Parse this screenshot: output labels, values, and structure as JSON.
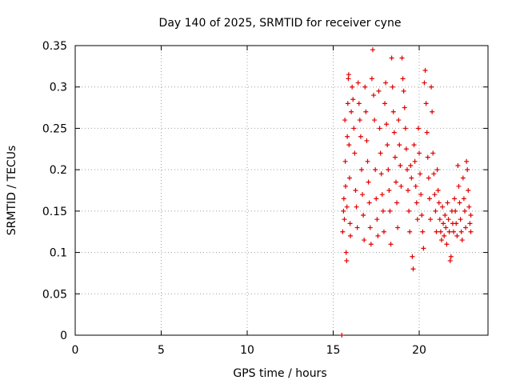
{
  "chart_data": {
    "type": "scatter",
    "title": "Day 140 of 2025, SRMTID for receiver cyne",
    "xlabel": "GPS time / hours",
    "ylabel": "SRMTID / TECUs",
    "xlim": [
      0,
      24
    ],
    "ylim": [
      0,
      0.35
    ],
    "xticks": [
      0,
      5,
      10,
      15,
      20
    ],
    "xtick_labels": [
      "0",
      "5",
      "10",
      "15",
      "20"
    ],
    "yticks": [
      0,
      0.05,
      0.1,
      0.15,
      0.2,
      0.25,
      0.3,
      0.35
    ],
    "ytick_labels": [
      "0",
      "0.05",
      "0.1",
      "0.15",
      "0.2",
      "0.25",
      "0.3",
      "0.35"
    ],
    "grid": true,
    "marker": "plus",
    "color": "#e00000",
    "series": [
      {
        "name": "SRMTID",
        "points": [
          [
            15.5,
            0.0
          ],
          [
            15.55,
            0.125
          ],
          [
            15.6,
            0.15
          ],
          [
            15.62,
            0.165
          ],
          [
            15.65,
            0.14
          ],
          [
            15.68,
            0.26
          ],
          [
            15.7,
            0.21
          ],
          [
            15.72,
            0.18
          ],
          [
            15.75,
            0.1
          ],
          [
            15.78,
            0.09
          ],
          [
            15.8,
            0.155
          ],
          [
            15.82,
            0.24
          ],
          [
            15.85,
            0.28
          ],
          [
            15.88,
            0.31
          ],
          [
            15.9,
            0.315
          ],
          [
            15.92,
            0.23
          ],
          [
            15.95,
            0.19
          ],
          [
            15.98,
            0.135
          ],
          [
            16.0,
            0.12
          ],
          [
            16.05,
            0.27
          ],
          [
            16.1,
            0.3
          ],
          [
            16.15,
            0.285
          ],
          [
            16.2,
            0.25
          ],
          [
            16.25,
            0.22
          ],
          [
            16.3,
            0.175
          ],
          [
            16.35,
            0.155
          ],
          [
            16.4,
            0.13
          ],
          [
            16.45,
            0.305
          ],
          [
            16.5,
            0.28
          ],
          [
            16.55,
            0.26
          ],
          [
            16.6,
            0.24
          ],
          [
            16.65,
            0.2
          ],
          [
            16.7,
            0.17
          ],
          [
            16.75,
            0.145
          ],
          [
            16.8,
            0.115
          ],
          [
            16.85,
            0.3
          ],
          [
            16.9,
            0.27
          ],
          [
            16.95,
            0.235
          ],
          [
            17.0,
            0.21
          ],
          [
            17.05,
            0.185
          ],
          [
            17.1,
            0.16
          ],
          [
            17.15,
            0.13
          ],
          [
            17.2,
            0.11
          ],
          [
            17.25,
            0.31
          ],
          [
            17.3,
            0.345
          ],
          [
            17.35,
            0.29
          ],
          [
            17.4,
            0.26
          ],
          [
            17.45,
            0.2
          ],
          [
            17.5,
            0.165
          ],
          [
            17.55,
            0.14
          ],
          [
            17.6,
            0.12
          ],
          [
            17.65,
            0.295
          ],
          [
            17.7,
            0.25
          ],
          [
            17.75,
            0.22
          ],
          [
            17.8,
            0.195
          ],
          [
            17.85,
            0.17
          ],
          [
            17.9,
            0.15
          ],
          [
            17.95,
            0.125
          ],
          [
            18.0,
            0.28
          ],
          [
            18.05,
            0.305
          ],
          [
            18.1,
            0.255
          ],
          [
            18.15,
            0.23
          ],
          [
            18.2,
            0.2
          ],
          [
            18.25,
            0.175
          ],
          [
            18.3,
            0.15
          ],
          [
            18.35,
            0.11
          ],
          [
            18.4,
            0.335
          ],
          [
            18.45,
            0.3
          ],
          [
            18.5,
            0.27
          ],
          [
            18.55,
            0.245
          ],
          [
            18.6,
            0.215
          ],
          [
            18.65,
            0.185
          ],
          [
            18.7,
            0.16
          ],
          [
            18.75,
            0.13
          ],
          [
            18.8,
            0.26
          ],
          [
            18.85,
            0.23
          ],
          [
            18.9,
            0.205
          ],
          [
            18.95,
            0.18
          ],
          [
            19.0,
            0.335
          ],
          [
            19.05,
            0.31
          ],
          [
            19.1,
            0.295
          ],
          [
            19.15,
            0.275
          ],
          [
            19.2,
            0.25
          ],
          [
            19.25,
            0.225
          ],
          [
            19.3,
            0.2
          ],
          [
            19.35,
            0.175
          ],
          [
            19.4,
            0.15
          ],
          [
            19.45,
            0.125
          ],
          [
            19.5,
            0.205
          ],
          [
            19.55,
            0.19
          ],
          [
            19.6,
            0.095
          ],
          [
            19.65,
            0.08
          ],
          [
            19.7,
            0.23
          ],
          [
            19.75,
            0.21
          ],
          [
            19.8,
            0.18
          ],
          [
            19.85,
            0.16
          ],
          [
            19.9,
            0.14
          ],
          [
            19.95,
            0.25
          ],
          [
            20.0,
            0.22
          ],
          [
            20.05,
            0.195
          ],
          [
            20.1,
            0.17
          ],
          [
            20.15,
            0.145
          ],
          [
            20.2,
            0.125
          ],
          [
            20.25,
            0.105
          ],
          [
            20.3,
            0.305
          ],
          [
            20.35,
            0.32
          ],
          [
            20.4,
            0.28
          ],
          [
            20.45,
            0.245
          ],
          [
            20.5,
            0.215
          ],
          [
            20.55,
            0.19
          ],
          [
            20.6,
            0.165
          ],
          [
            20.65,
            0.14
          ],
          [
            20.7,
            0.3
          ],
          [
            20.75,
            0.27
          ],
          [
            20.8,
            0.22
          ],
          [
            20.85,
            0.195
          ],
          [
            20.9,
            0.17
          ],
          [
            20.95,
            0.15
          ],
          [
            21.0,
            0.125
          ],
          [
            21.05,
            0.2
          ],
          [
            21.1,
            0.175
          ],
          [
            21.15,
            0.16
          ],
          [
            21.2,
            0.14
          ],
          [
            21.25,
            0.125
          ],
          [
            21.3,
            0.115
          ],
          [
            21.35,
            0.155
          ],
          [
            21.4,
            0.135
          ],
          [
            21.45,
            0.12
          ],
          [
            21.5,
            0.145
          ],
          [
            21.55,
            0.13
          ],
          [
            21.6,
            0.11
          ],
          [
            21.65,
            0.16
          ],
          [
            21.7,
            0.14
          ],
          [
            21.75,
            0.125
          ],
          [
            21.8,
            0.09
          ],
          [
            21.85,
            0.095
          ],
          [
            21.9,
            0.15
          ],
          [
            21.95,
            0.135
          ],
          [
            22.0,
            0.125
          ],
          [
            22.05,
            0.165
          ],
          [
            22.1,
            0.15
          ],
          [
            22.15,
            0.135
          ],
          [
            22.2,
            0.12
          ],
          [
            22.25,
            0.205
          ],
          [
            22.3,
            0.18
          ],
          [
            22.35,
            0.16
          ],
          [
            22.4,
            0.14
          ],
          [
            22.45,
            0.125
          ],
          [
            22.5,
            0.115
          ],
          [
            22.55,
            0.19
          ],
          [
            22.6,
            0.165
          ],
          [
            22.65,
            0.15
          ],
          [
            22.7,
            0.13
          ],
          [
            22.75,
            0.21
          ],
          [
            22.8,
            0.2
          ],
          [
            22.85,
            0.175
          ],
          [
            22.9,
            0.155
          ],
          [
            22.95,
            0.135
          ],
          [
            23.0,
            0.125
          ],
          [
            23.0,
            0.145
          ]
        ]
      }
    ]
  }
}
